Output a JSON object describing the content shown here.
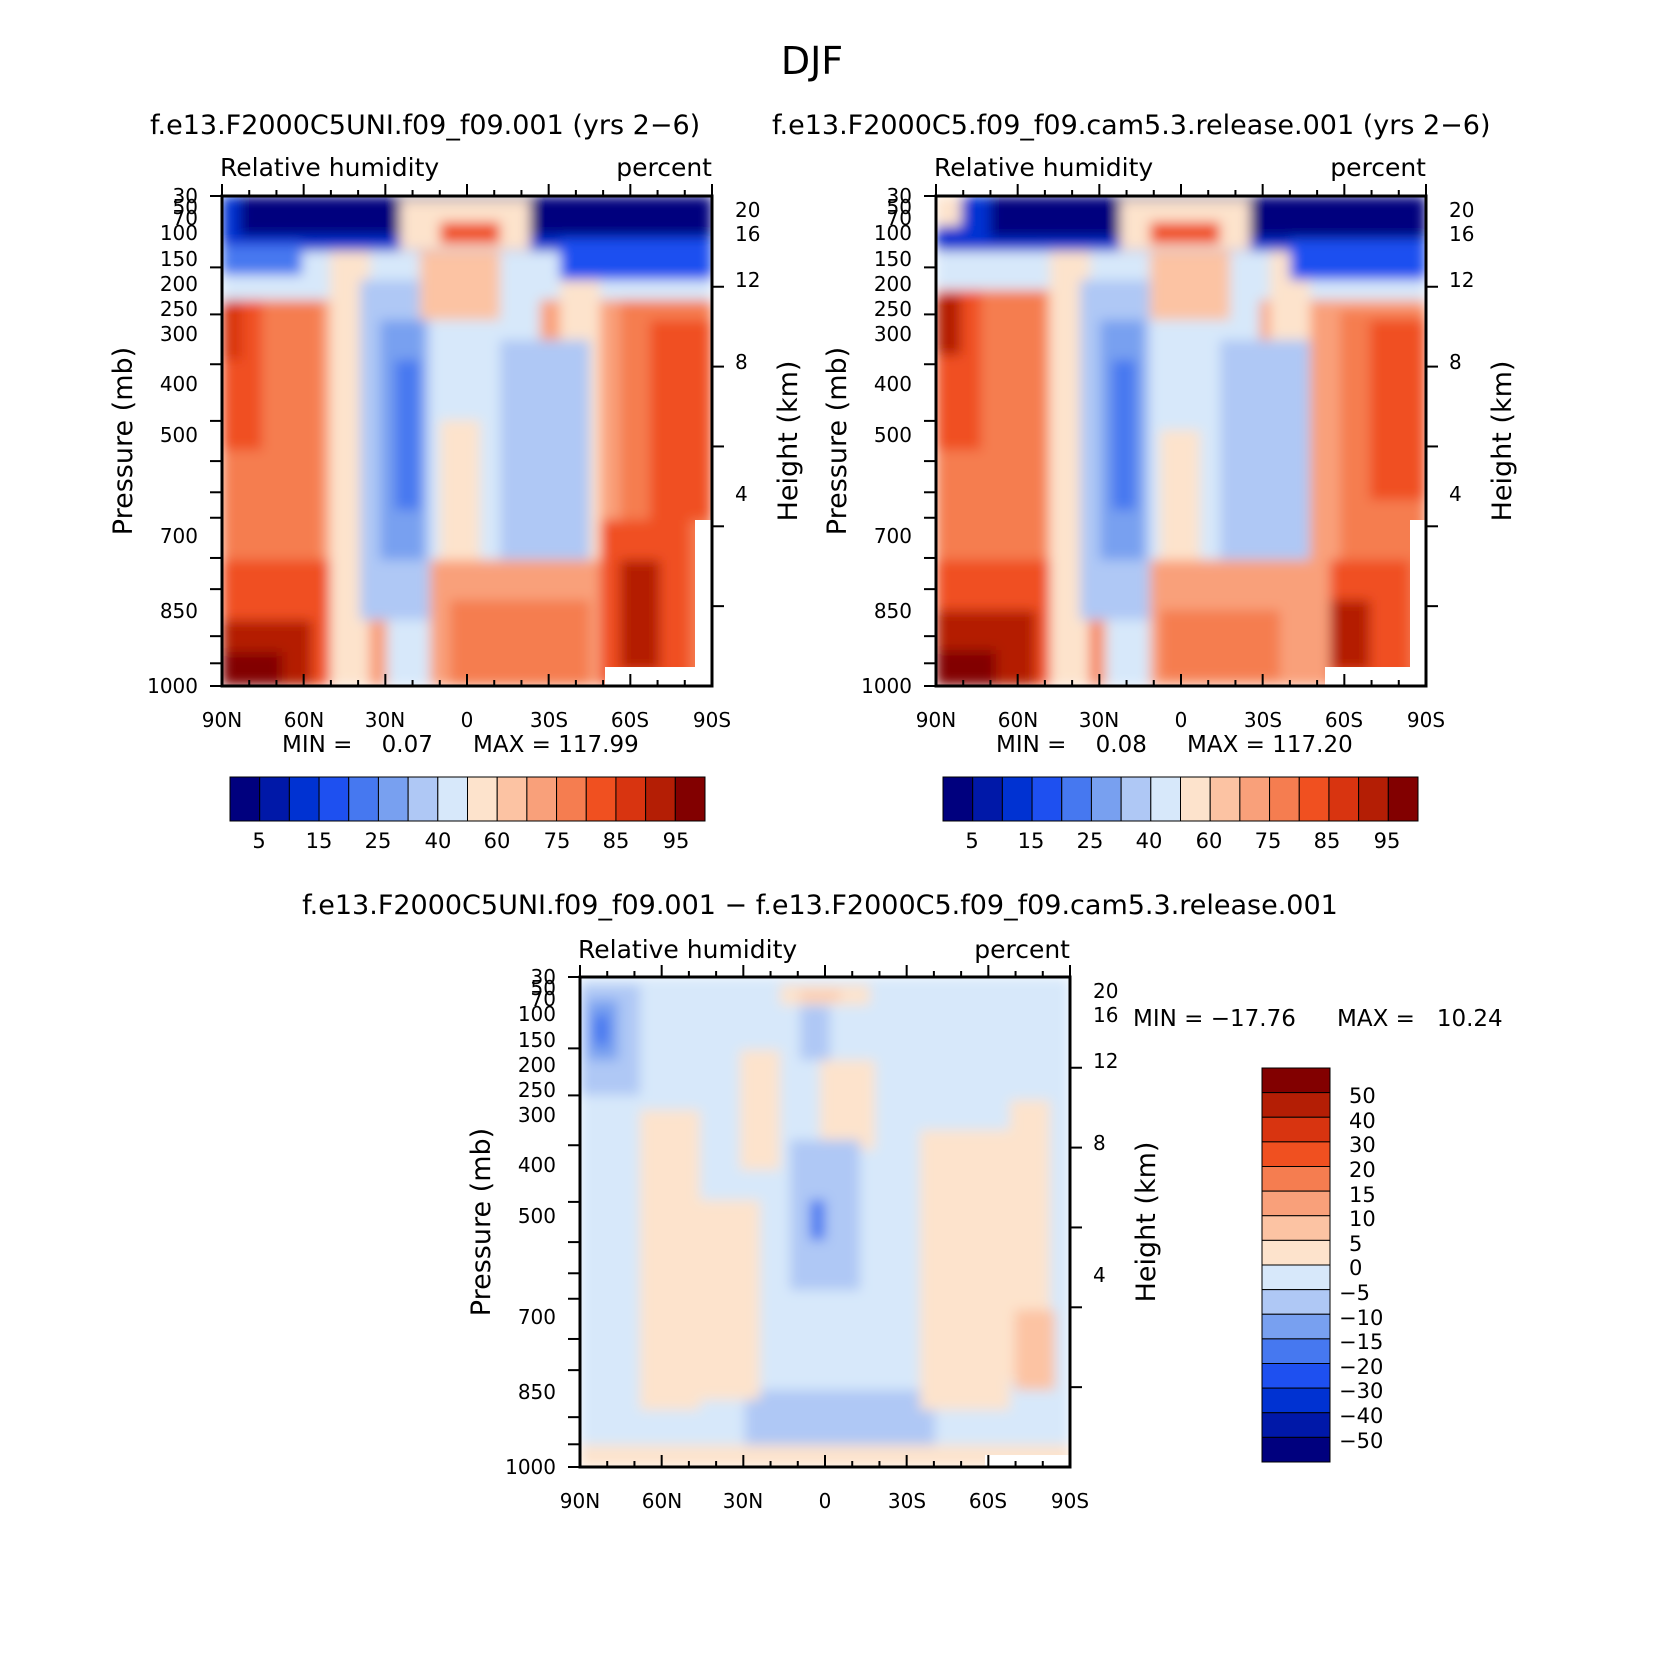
{
  "page_title": "DJF",
  "chart_data": [
    {
      "type": "heatmap",
      "id": "case",
      "title": "f.e13.F2000C5UNI.f09_f09.001 (yrs 2-6)",
      "left_label": "Relative humidity",
      "right_label": "percent",
      "ylabel": "Pressure (mb)",
      "ylabel_right": "Height (km)",
      "xticks": [
        "90N",
        "60N",
        "30N",
        "0",
        "30S",
        "60S",
        "90S"
      ],
      "yticks": [
        "30",
        "50",
        "70",
        "100",
        "150",
        "200",
        "250",
        "300",
        "400",
        "500",
        "700",
        "850",
        "1000"
      ],
      "yticks_right": [
        "20",
        "16",
        "12",
        "8",
        "4"
      ],
      "min_text": "MIN =    0.07",
      "max_text": "MAX = 117.99",
      "colorbar_labels": [
        "5",
        "15",
        "25",
        "40",
        "60",
        "75",
        "85",
        "95"
      ],
      "colorbar_colors": [
        "#00007e",
        "#0018a8",
        "#0032d2",
        "#1e50f0",
        "#4678f0",
        "#78a0f0",
        "#afc8f5",
        "#d7e8fa",
        "#fde3cc",
        "#fcc3a3",
        "#f9a07a",
        "#f57d50",
        "#f05020",
        "#d83410",
        "#b41e05",
        "#820000"
      ]
    },
    {
      "type": "heatmap",
      "id": "control",
      "title": "f.e13.F2000C5.f09_f09.cam5.3.release.001 (yrs 2-6)",
      "left_label": "Relative humidity",
      "right_label": "percent",
      "ylabel": "Pressure (mb)",
      "ylabel_right": "Height (km)",
      "xticks": [
        "90N",
        "60N",
        "30N",
        "0",
        "30S",
        "60S",
        "90S"
      ],
      "yticks": [
        "30",
        "50",
        "70",
        "100",
        "150",
        "200",
        "250",
        "300",
        "400",
        "500",
        "700",
        "850",
        "1000"
      ],
      "yticks_right": [
        "20",
        "16",
        "12",
        "8",
        "4"
      ],
      "min_text": "MIN =    0.08",
      "max_text": "MAX = 117.20",
      "colorbar_labels": [
        "5",
        "15",
        "25",
        "40",
        "60",
        "75",
        "85",
        "95"
      ],
      "colorbar_colors": [
        "#00007e",
        "#0018a8",
        "#0032d2",
        "#1e50f0",
        "#4678f0",
        "#78a0f0",
        "#afc8f5",
        "#d7e8fa",
        "#fde3cc",
        "#fcc3a3",
        "#f9a07a",
        "#f57d50",
        "#f05020",
        "#d83410",
        "#b41e05",
        "#820000"
      ]
    },
    {
      "type": "heatmap",
      "id": "difference",
      "title": "f.e13.F2000C5UNI.f09_f09.001 - f.e13.F2000C5.f09_f09.cam5.3.release.001",
      "left_label": "Relative humidity",
      "right_label": "percent",
      "ylabel": "Pressure (mb)",
      "ylabel_right": "Height (km)",
      "xticks": [
        "90N",
        "60N",
        "30N",
        "0",
        "30S",
        "60S",
        "90S"
      ],
      "yticks": [
        "30",
        "50",
        "70",
        "100",
        "150",
        "200",
        "250",
        "300",
        "400",
        "500",
        "700",
        "850",
        "1000"
      ],
      "yticks_right": [
        "20",
        "16",
        "12",
        "8",
        "4"
      ],
      "min_text": "MIN = -17.76",
      "max_text": "MAX =   10.24",
      "colorbar_labels": [
        "50",
        "40",
        "30",
        "20",
        "15",
        "10",
        "5",
        "0",
        "-5",
        "-10",
        "-15",
        "-20",
        "-30",
        "-40",
        "-50"
      ],
      "colorbar_colors": [
        "#820000",
        "#b41e05",
        "#d83410",
        "#f05020",
        "#f57d50",
        "#f9a07a",
        "#fcc3a3",
        "#fde3cc",
        "#d7e8fa",
        "#afc8f5",
        "#78a0f0",
        "#4678f0",
        "#1e50f0",
        "#0032d2",
        "#0018a8",
        "#00007e"
      ]
    }
  ]
}
